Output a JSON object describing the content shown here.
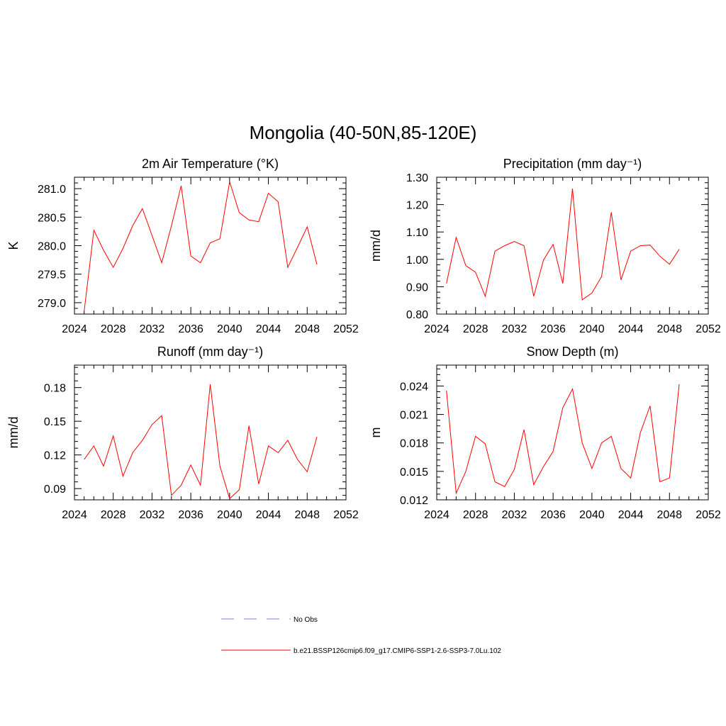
{
  "title": "Mongolia (40-50N,85-120E)",
  "legend": {
    "obs_label": "No Obs",
    "model_label": "b.e21.BSSP126cmip6.f09_g17.CMIP6-SSP1-2.6-SSP3-7.0Lu.102",
    "obs_color": "#9999dd",
    "model_color": "#ff0000"
  },
  "chart_data": [
    {
      "type": "line",
      "title": "2m Air Temperature (°K)",
      "ylabel": "K",
      "xlim": [
        2024,
        2052
      ],
      "x_ticks": [
        2024,
        2028,
        2032,
        2036,
        2040,
        2044,
        2048,
        2052
      ],
      "ylim": [
        278.8,
        281.2
      ],
      "y_ticks": [
        279.0,
        279.5,
        280.0,
        280.5,
        281.0
      ],
      "y_tick_labels": [
        "279.0",
        "279.5",
        "280.0",
        "280.5",
        "281.0"
      ],
      "x": [
        2025,
        2026,
        2027,
        2028,
        2029,
        2030,
        2031,
        2032,
        2033,
        2034,
        2035,
        2036,
        2037,
        2038,
        2039,
        2040,
        2041,
        2042,
        2043,
        2044,
        2045,
        2046,
        2047,
        2048,
        2049
      ],
      "series": [
        {
          "color": "#ff0000",
          "values": [
            278.85,
            280.27,
            279.92,
            279.62,
            279.95,
            280.35,
            280.65,
            280.18,
            279.7,
            280.35,
            281.05,
            279.82,
            279.7,
            280.05,
            280.12,
            281.12,
            280.58,
            280.45,
            280.42,
            280.92,
            280.77,
            279.62,
            279.97,
            280.33,
            279.67
          ]
        }
      ]
    },
    {
      "type": "line",
      "title": "Precipitation (mm day⁻¹)",
      "ylabel": "mm/d",
      "xlim": [
        2024,
        2052
      ],
      "x_ticks": [
        2024,
        2028,
        2032,
        2036,
        2040,
        2044,
        2048,
        2052
      ],
      "ylim": [
        0.8,
        1.3
      ],
      "y_ticks": [
        0.8,
        0.9,
        1.0,
        1.1,
        1.2,
        1.3
      ],
      "y_tick_labels": [
        "0.80",
        "0.90",
        "1.00",
        "1.10",
        "1.20",
        "1.30"
      ],
      "x": [
        2025,
        2026,
        2027,
        2028,
        2029,
        2030,
        2031,
        2032,
        2033,
        2034,
        2035,
        2036,
        2037,
        2038,
        2039,
        2040,
        2041,
        2042,
        2043,
        2044,
        2045,
        2046,
        2047,
        2048,
        2049
      ],
      "series": [
        {
          "color": "#ff0000",
          "values": [
            0.912,
            1.08,
            0.977,
            0.953,
            0.865,
            1.03,
            1.05,
            1.065,
            1.05,
            0.865,
            0.997,
            1.055,
            0.912,
            1.258,
            0.852,
            0.877,
            0.937,
            1.172,
            0.925,
            1.03,
            1.05,
            1.052,
            1.012,
            0.982,
            1.037
          ]
        }
      ]
    },
    {
      "type": "line",
      "title": "Runoff (mm day⁻¹)",
      "ylabel": "mm/d",
      "xlim": [
        2024,
        2052
      ],
      "x_ticks": [
        2024,
        2028,
        2032,
        2036,
        2040,
        2044,
        2048,
        2052
      ],
      "ylim": [
        0.08,
        0.2
      ],
      "y_ticks": [
        0.09,
        0.12,
        0.15,
        0.18
      ],
      "y_tick_labels": [
        "0.09",
        "0.12",
        "0.15",
        "0.18"
      ],
      "x": [
        2025,
        2026,
        2027,
        2028,
        2029,
        2030,
        2031,
        2032,
        2033,
        2034,
        2035,
        2036,
        2037,
        2038,
        2039,
        2040,
        2041,
        2042,
        2043,
        2044,
        2045,
        2046,
        2047,
        2048,
        2049
      ],
      "series": [
        {
          "color": "#ff0000",
          "values": [
            0.116,
            0.128,
            0.11,
            0.137,
            0.101,
            0.122,
            0.133,
            0.147,
            0.155,
            0.084,
            0.093,
            0.111,
            0.093,
            0.183,
            0.11,
            0.081,
            0.089,
            0.146,
            0.094,
            0.128,
            0.122,
            0.133,
            0.116,
            0.105,
            0.136
          ]
        }
      ]
    },
    {
      "type": "line",
      "title": "Snow Depth (m)",
      "ylabel": "m",
      "xlim": [
        2024,
        2052
      ],
      "x_ticks": [
        2024,
        2028,
        2032,
        2036,
        2040,
        2044,
        2048,
        2052
      ],
      "ylim": [
        0.012,
        0.0262
      ],
      "y_ticks": [
        0.012,
        0.015,
        0.018,
        0.021,
        0.024
      ],
      "y_tick_labels": [
        "0.012",
        "0.015",
        "0.018",
        "0.021",
        "0.024"
      ],
      "x": [
        2025,
        2026,
        2027,
        2028,
        2029,
        2030,
        2031,
        2032,
        2033,
        2034,
        2035,
        2036,
        2037,
        2038,
        2039,
        2040,
        2041,
        2042,
        2043,
        2044,
        2045,
        2046,
        2047,
        2048,
        2049
      ],
      "series": [
        {
          "color": "#ff0000",
          "values": [
            0.0235,
            0.0127,
            0.015,
            0.0187,
            0.0179,
            0.0139,
            0.0134,
            0.0152,
            0.0194,
            0.0136,
            0.0155,
            0.0171,
            0.0217,
            0.0237,
            0.018,
            0.0153,
            0.018,
            0.0187,
            0.0153,
            0.0143,
            0.0191,
            0.0219,
            0.0139,
            0.0143,
            0.0242
          ]
        }
      ]
    }
  ]
}
